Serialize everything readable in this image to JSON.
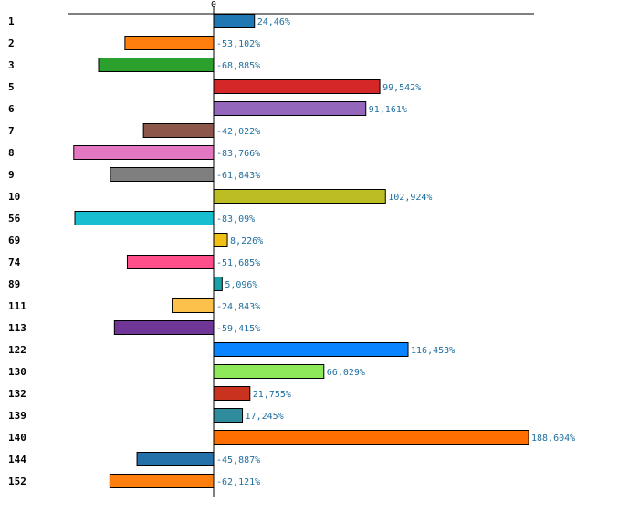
{
  "chart_data": {
    "type": "bar",
    "orientation": "horizontal",
    "title": "",
    "xlabel": "",
    "ylabel": "",
    "grid": false,
    "xlim": [
      -100,
      220
    ],
    "tick_labels": [
      "0"
    ],
    "categories": [
      "1",
      "2",
      "3",
      "5",
      "6",
      "7",
      "8",
      "9",
      "10",
      "56",
      "69",
      "74",
      "89",
      "111",
      "113",
      "122",
      "130",
      "132",
      "139",
      "140",
      "144",
      "152"
    ],
    "values": [
      24.46,
      -53.102,
      -68.885,
      99.542,
      91.161,
      -42.022,
      -83.766,
      -61.843,
      102.924,
      -83.09,
      8.226,
      -51.685,
      5.096,
      -24.843,
      -59.415,
      116.453,
      66.029,
      21.755,
      17.245,
      188.604,
      -45.887,
      -62.121
    ],
    "value_labels": [
      "24,46%",
      "-53,102%",
      "-68,885%",
      "99,542%",
      "91,161%",
      "-42,022%",
      "-83,766%",
      "-61,843%",
      "102,924%",
      "-83,09%",
      "8,226%",
      "-51,685%",
      "5,096%",
      "-24,843%",
      "-59,415%",
      "116,453%",
      "66,029%",
      "21,755%",
      "17,245%",
      "188,604%",
      "-45,887%",
      "-62,121%"
    ],
    "colors": [
      "#1f77b4",
      "#ff7f0e",
      "#2ca02c",
      "#d62728",
      "#9467bd",
      "#8c564b",
      "#e377c2",
      "#7f7f7f",
      "#bcbd22",
      "#17becf",
      "#f2c014",
      "#ff4f8b",
      "#17a2a8",
      "#fcc14a",
      "#6f3697",
      "#0a84ff",
      "#8de85a",
      "#c8321e",
      "#2f8c9c",
      "#ff6e00",
      "#2470a8",
      "#ff7f0e"
    ]
  }
}
